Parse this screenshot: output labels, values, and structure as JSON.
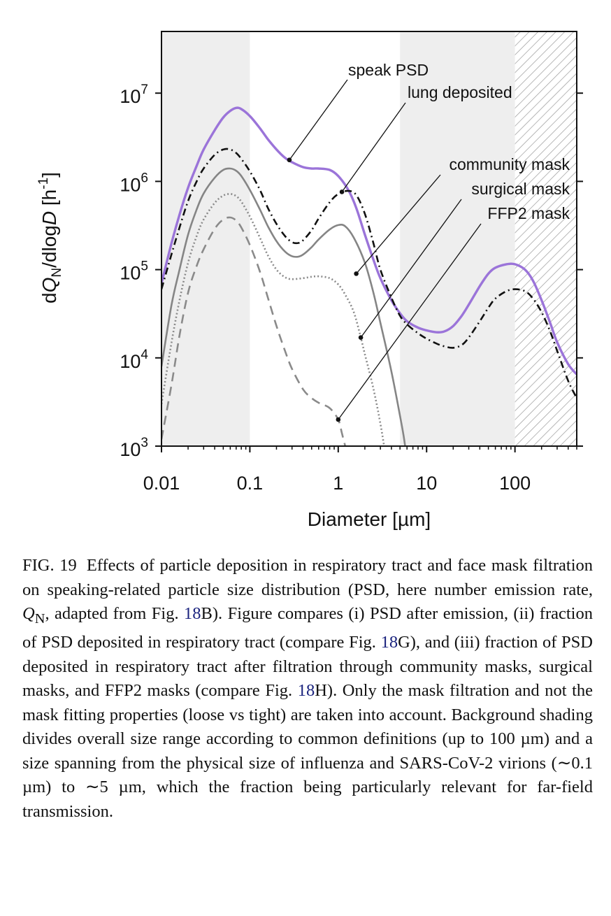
{
  "chart_data": {
    "type": "line",
    "xlabel": "Diameter [µm]",
    "ylabel": "dQ_N/dlogD [h^-1]",
    "x_scale": "log",
    "y_scale": "log",
    "xlim": [
      0.01,
      500
    ],
    "ylim": [
      1000,
      50000000
    ],
    "x_ticks": [
      {
        "value": 0.01,
        "label": "0.01"
      },
      {
        "value": 0.1,
        "label": "0.1"
      },
      {
        "value": 1,
        "label": "1"
      },
      {
        "value": 10,
        "label": "10"
      },
      {
        "value": 100,
        "label": "100"
      }
    ],
    "y_ticks": [
      {
        "value": 1000,
        "base": "10",
        "exp": "3"
      },
      {
        "value": 10000,
        "base": "10",
        "exp": "4"
      },
      {
        "value": 100000,
        "base": "10",
        "exp": "5"
      },
      {
        "value": 1000000,
        "base": "10",
        "exp": "6"
      },
      {
        "value": 10000000,
        "base": "10",
        "exp": "7"
      }
    ],
    "regions": [
      {
        "from": 0.01,
        "to": 0.1,
        "style": "shaded"
      },
      {
        "from": 5,
        "to": 100,
        "style": "shaded"
      },
      {
        "from": 100,
        "to": 500,
        "style": "hatched"
      }
    ],
    "series": [
      {
        "name": "speak PSD",
        "color": "#9b74d9",
        "style": "solid",
        "x": [
          0.01,
          0.013,
          0.016,
          0.02,
          0.025,
          0.03,
          0.04,
          0.05,
          0.06,
          0.07,
          0.08,
          0.1,
          0.13,
          0.16,
          0.2,
          0.25,
          0.3,
          0.4,
          0.5,
          0.6,
          0.8,
          1,
          1.3,
          1.6,
          2,
          2.5,
          3,
          4,
          5,
          6,
          8,
          10,
          13,
          16,
          20,
          25,
          30,
          40,
          50,
          60,
          80,
          100,
          130,
          160,
          200,
          250,
          300,
          400,
          500
        ],
        "y": [
          70000,
          200000,
          420000,
          850000,
          1500000,
          2300000,
          3800000,
          5300000,
          6300000,
          6800000,
          6600000,
          5500000,
          4000000,
          3000000,
          2300000,
          1850000,
          1650000,
          1450000,
          1400000,
          1400000,
          1350000,
          1150000,
          800000,
          500000,
          250000,
          130000,
          80000,
          45000,
          32000,
          26000,
          22000,
          20500,
          19500,
          20000,
          23000,
          30000,
          40000,
          65000,
          90000,
          105000,
          115000,
          115000,
          100000,
          75000,
          45000,
          25000,
          15000,
          8500,
          6500
        ]
      },
      {
        "name": "lung deposited",
        "color": "#111111",
        "style": "dashdot",
        "x": [
          0.01,
          0.013,
          0.016,
          0.02,
          0.025,
          0.03,
          0.04,
          0.05,
          0.06,
          0.07,
          0.08,
          0.1,
          0.13,
          0.16,
          0.2,
          0.25,
          0.3,
          0.35,
          0.4,
          0.5,
          0.6,
          0.8,
          1,
          1.3,
          1.6,
          2,
          2.5,
          3,
          4,
          5,
          6,
          8,
          10,
          13,
          16,
          20,
          25,
          30,
          40,
          50,
          60,
          80,
          100,
          130,
          160,
          200,
          250,
          300,
          400,
          500
        ],
        "y": [
          60000,
          150000,
          300000,
          600000,
          1000000,
          1400000,
          2000000,
          2300000,
          2300000,
          2100000,
          1800000,
          1300000,
          800000,
          500000,
          330000,
          240000,
          205000,
          200000,
          215000,
          280000,
          380000,
          580000,
          720000,
          780000,
          700000,
          430000,
          200000,
          100000,
          48000,
          30000,
          24000,
          19000,
          16500,
          14500,
          13500,
          13000,
          14000,
          17000,
          26000,
          37000,
          47000,
          57000,
          60000,
          57000,
          47000,
          33000,
          20000,
          12000,
          5500,
          3500
        ]
      },
      {
        "name": "community mask",
        "color": "#858585",
        "style": "solid",
        "x": [
          0.01,
          0.013,
          0.016,
          0.02,
          0.025,
          0.03,
          0.04,
          0.05,
          0.06,
          0.07,
          0.08,
          0.1,
          0.13,
          0.16,
          0.2,
          0.25,
          0.3,
          0.35,
          0.4,
          0.5,
          0.6,
          0.8,
          1,
          1.2,
          1.5,
          2,
          2.5,
          3,
          4,
          5,
          5.5,
          6
        ],
        "y": [
          8000,
          40000,
          100000,
          250000,
          480000,
          730000,
          1100000,
          1350000,
          1400000,
          1320000,
          1150000,
          800000,
          480000,
          310000,
          210000,
          160000,
          142000,
          140000,
          148000,
          180000,
          220000,
          285000,
          320000,
          310000,
          230000,
          120000,
          55000,
          25000,
          7000,
          2200,
          1300,
          700
        ]
      },
      {
        "name": "surgical mask",
        "color": "#8a8a8a",
        "style": "dotted",
        "x": [
          0.01,
          0.013,
          0.016,
          0.02,
          0.025,
          0.03,
          0.04,
          0.05,
          0.06,
          0.07,
          0.08,
          0.1,
          0.13,
          0.16,
          0.2,
          0.25,
          0.3,
          0.4,
          0.5,
          0.6,
          0.8,
          1,
          1.2,
          1.5,
          1.8,
          2,
          2.5,
          3,
          3.3
        ],
        "y": [
          3000,
          15000,
          45000,
          120000,
          240000,
          370000,
          570000,
          690000,
          720000,
          680000,
          590000,
          400000,
          230000,
          145000,
          100000,
          82000,
          78000,
          80000,
          83000,
          84000,
          80000,
          68000,
          52000,
          33000,
          17000,
          11000,
          4500,
          1800,
          1000
        ]
      },
      {
        "name": "FFP2 mask",
        "color": "#8a8a8a",
        "style": "dashed",
        "x": [
          0.01,
          0.013,
          0.016,
          0.02,
          0.025,
          0.03,
          0.04,
          0.05,
          0.06,
          0.07,
          0.08,
          0.1,
          0.13,
          0.16,
          0.2,
          0.25,
          0.3,
          0.4,
          0.5,
          0.6,
          0.8,
          1,
          1.1,
          1.2
        ],
        "y": [
          1200,
          5000,
          18000,
          55000,
          110000,
          170000,
          290000,
          370000,
          390000,
          360000,
          300000,
          190000,
          95000,
          48000,
          23000,
          12000,
          7500,
          4400,
          3500,
          3100,
          2700,
          2000,
          1400,
          1000
        ]
      }
    ],
    "annotations": [
      {
        "text": "speak PSD",
        "point_x": 0.28,
        "point_y": 1750000
      },
      {
        "text": "lung deposited",
        "point_x": 1.1,
        "point_y": 760000
      },
      {
        "text": "community mask",
        "point_x": 1.6,
        "point_y": 90000
      },
      {
        "text": "surgical mask",
        "point_x": 1.8,
        "point_y": 17000
      },
      {
        "text": "FFP2 mask",
        "point_x": 1.0,
        "point_y": 2000
      }
    ]
  },
  "caption": {
    "label": "FIG. 19",
    "part1": "Effects of particle deposition in respiratory tract and face mask filtration on speaking-related particle size distribution (PSD, here number emission rate, ",
    "q_symbol": "Q",
    "q_sub": "N",
    "part2": ", adapted from Fig. ",
    "ref1": "18",
    "part3": "B). Figure compares (i) PSD after emission, (ii) fraction of PSD deposited in respiratory tract (compare Fig. ",
    "ref2": "18",
    "part4": "G), and (iii) fraction of PSD deposited in respiratory tract after filtration through community masks, surgical masks, and FFP2 masks (compare Fig. ",
    "ref3": "18",
    "part5": "H). Only the mask filtration and not the mask fitting properties (loose vs tight) are taken into account. Background shading divides overall size range according to common definitions (up to 100 µm) and a size spanning from the physical size of influenza and SARS-CoV-2 virions (∼0.1 µm) to ∼5 µm, which the fraction being particularly relevant for far-field transmission."
  }
}
